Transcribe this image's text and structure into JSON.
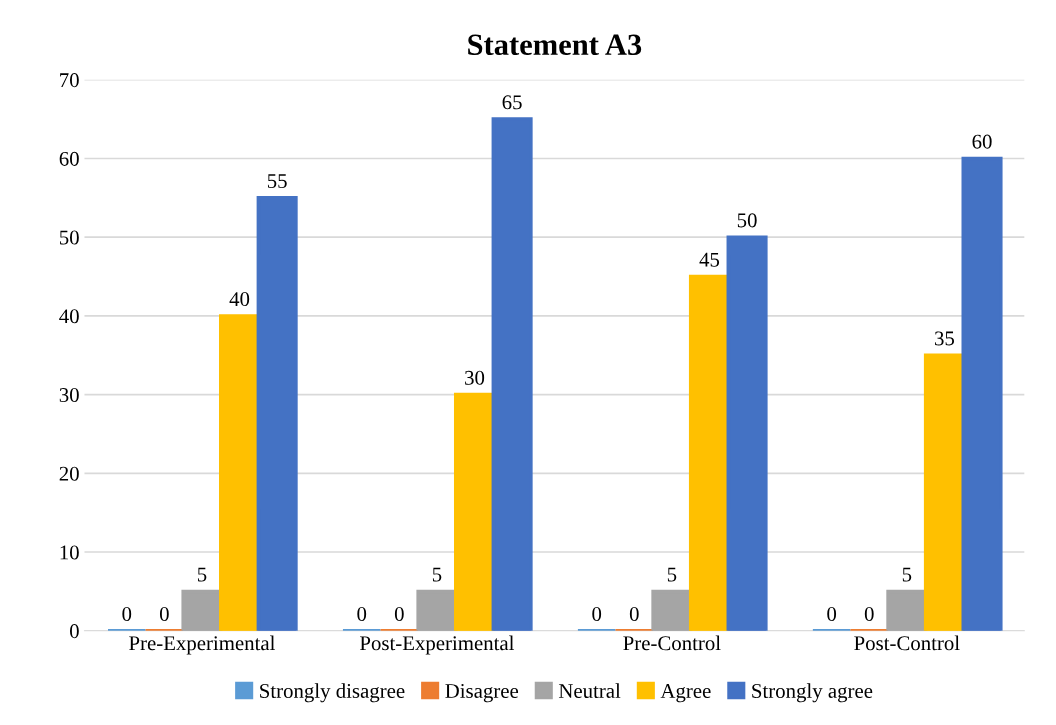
{
  "chart_data": {
    "type": "bar",
    "title": "Statement A3",
    "categories": [
      "Pre-Experimental",
      "Post-Experimental",
      "Pre-Control",
      "Post-Control"
    ],
    "series": [
      {
        "name": "Strongly disagree",
        "color": "#5b9bd5",
        "values": [
          0,
          0,
          0,
          0
        ]
      },
      {
        "name": "Disagree",
        "color": "#ed7d31",
        "values": [
          0,
          0,
          0,
          0
        ]
      },
      {
        "name": "Neutral",
        "color": "#a5a5a5",
        "values": [
          5,
          5,
          5,
          5
        ]
      },
      {
        "name": "Agree",
        "color": "#ffc000",
        "values": [
          40,
          30,
          45,
          35
        ]
      },
      {
        "name": "Strongly agree",
        "color": "#4472c4",
        "values": [
          55,
          65,
          50,
          60
        ]
      }
    ],
    "ylim": [
      0,
      70
    ],
    "yticks": [
      0,
      10,
      20,
      30,
      40,
      50,
      60,
      70
    ],
    "grid": "y",
    "legend": "bottom",
    "data_labels": true
  }
}
